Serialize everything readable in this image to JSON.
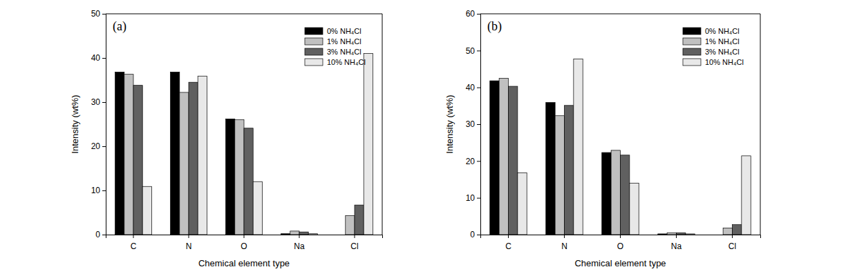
{
  "chart_data": [
    {
      "type": "bar",
      "title": "(a)",
      "x_label": "Chemical element type",
      "y_label": "Intensity (wt%)",
      "categories": [
        "C",
        "N",
        "O",
        "Na",
        "Cl"
      ],
      "series": [
        {
          "name": "0% NH₄Cl",
          "color": "#000000",
          "values": [
            36.8,
            36.8,
            26.2,
            0.2,
            0
          ]
        },
        {
          "name": "1% NH₄Cl",
          "color": "#c0c0c0",
          "values": [
            36.3,
            32.2,
            26.0,
            0.8,
            4.3
          ]
        },
        {
          "name": "3% NH₄Cl",
          "color": "#606060",
          "values": [
            33.8,
            34.5,
            24.1,
            0.6,
            6.7
          ]
        },
        {
          "name": "10% NH₄Cl",
          "color": "#e8e8e8",
          "values": [
            10.9,
            35.9,
            12.0,
            0.2,
            41.0
          ]
        }
      ],
      "ylim": [
        0,
        50
      ],
      "yticks": [
        0,
        10,
        20,
        30,
        40,
        50
      ],
      "grid": false,
      "legend": "upper right"
    },
    {
      "type": "bar",
      "title": "(b)",
      "x_label": "Chemical element type",
      "y_label": "Intensity (wt%)",
      "categories": [
        "C",
        "N",
        "O",
        "Na",
        "Cl"
      ],
      "series": [
        {
          "name": "0% NH₄Cl",
          "color": "#000000",
          "values": [
            41.8,
            35.9,
            22.3,
            0.2,
            0
          ]
        },
        {
          "name": "1% NH₄Cl",
          "color": "#c0c0c0",
          "values": [
            42.5,
            32.3,
            22.9,
            0.5,
            1.8
          ]
        },
        {
          "name": "3% NH₄Cl",
          "color": "#606060",
          "values": [
            40.3,
            35.1,
            21.6,
            0.5,
            2.7
          ]
        },
        {
          "name": "10% NH₄Cl",
          "color": "#e8e8e8",
          "values": [
            16.8,
            47.7,
            14.0,
            0.2,
            21.4
          ]
        }
      ],
      "ylim": [
        0,
        60
      ],
      "yticks": [
        0,
        10,
        20,
        30,
        40,
        50,
        60
      ],
      "grid": false,
      "legend": "upper right"
    }
  ]
}
